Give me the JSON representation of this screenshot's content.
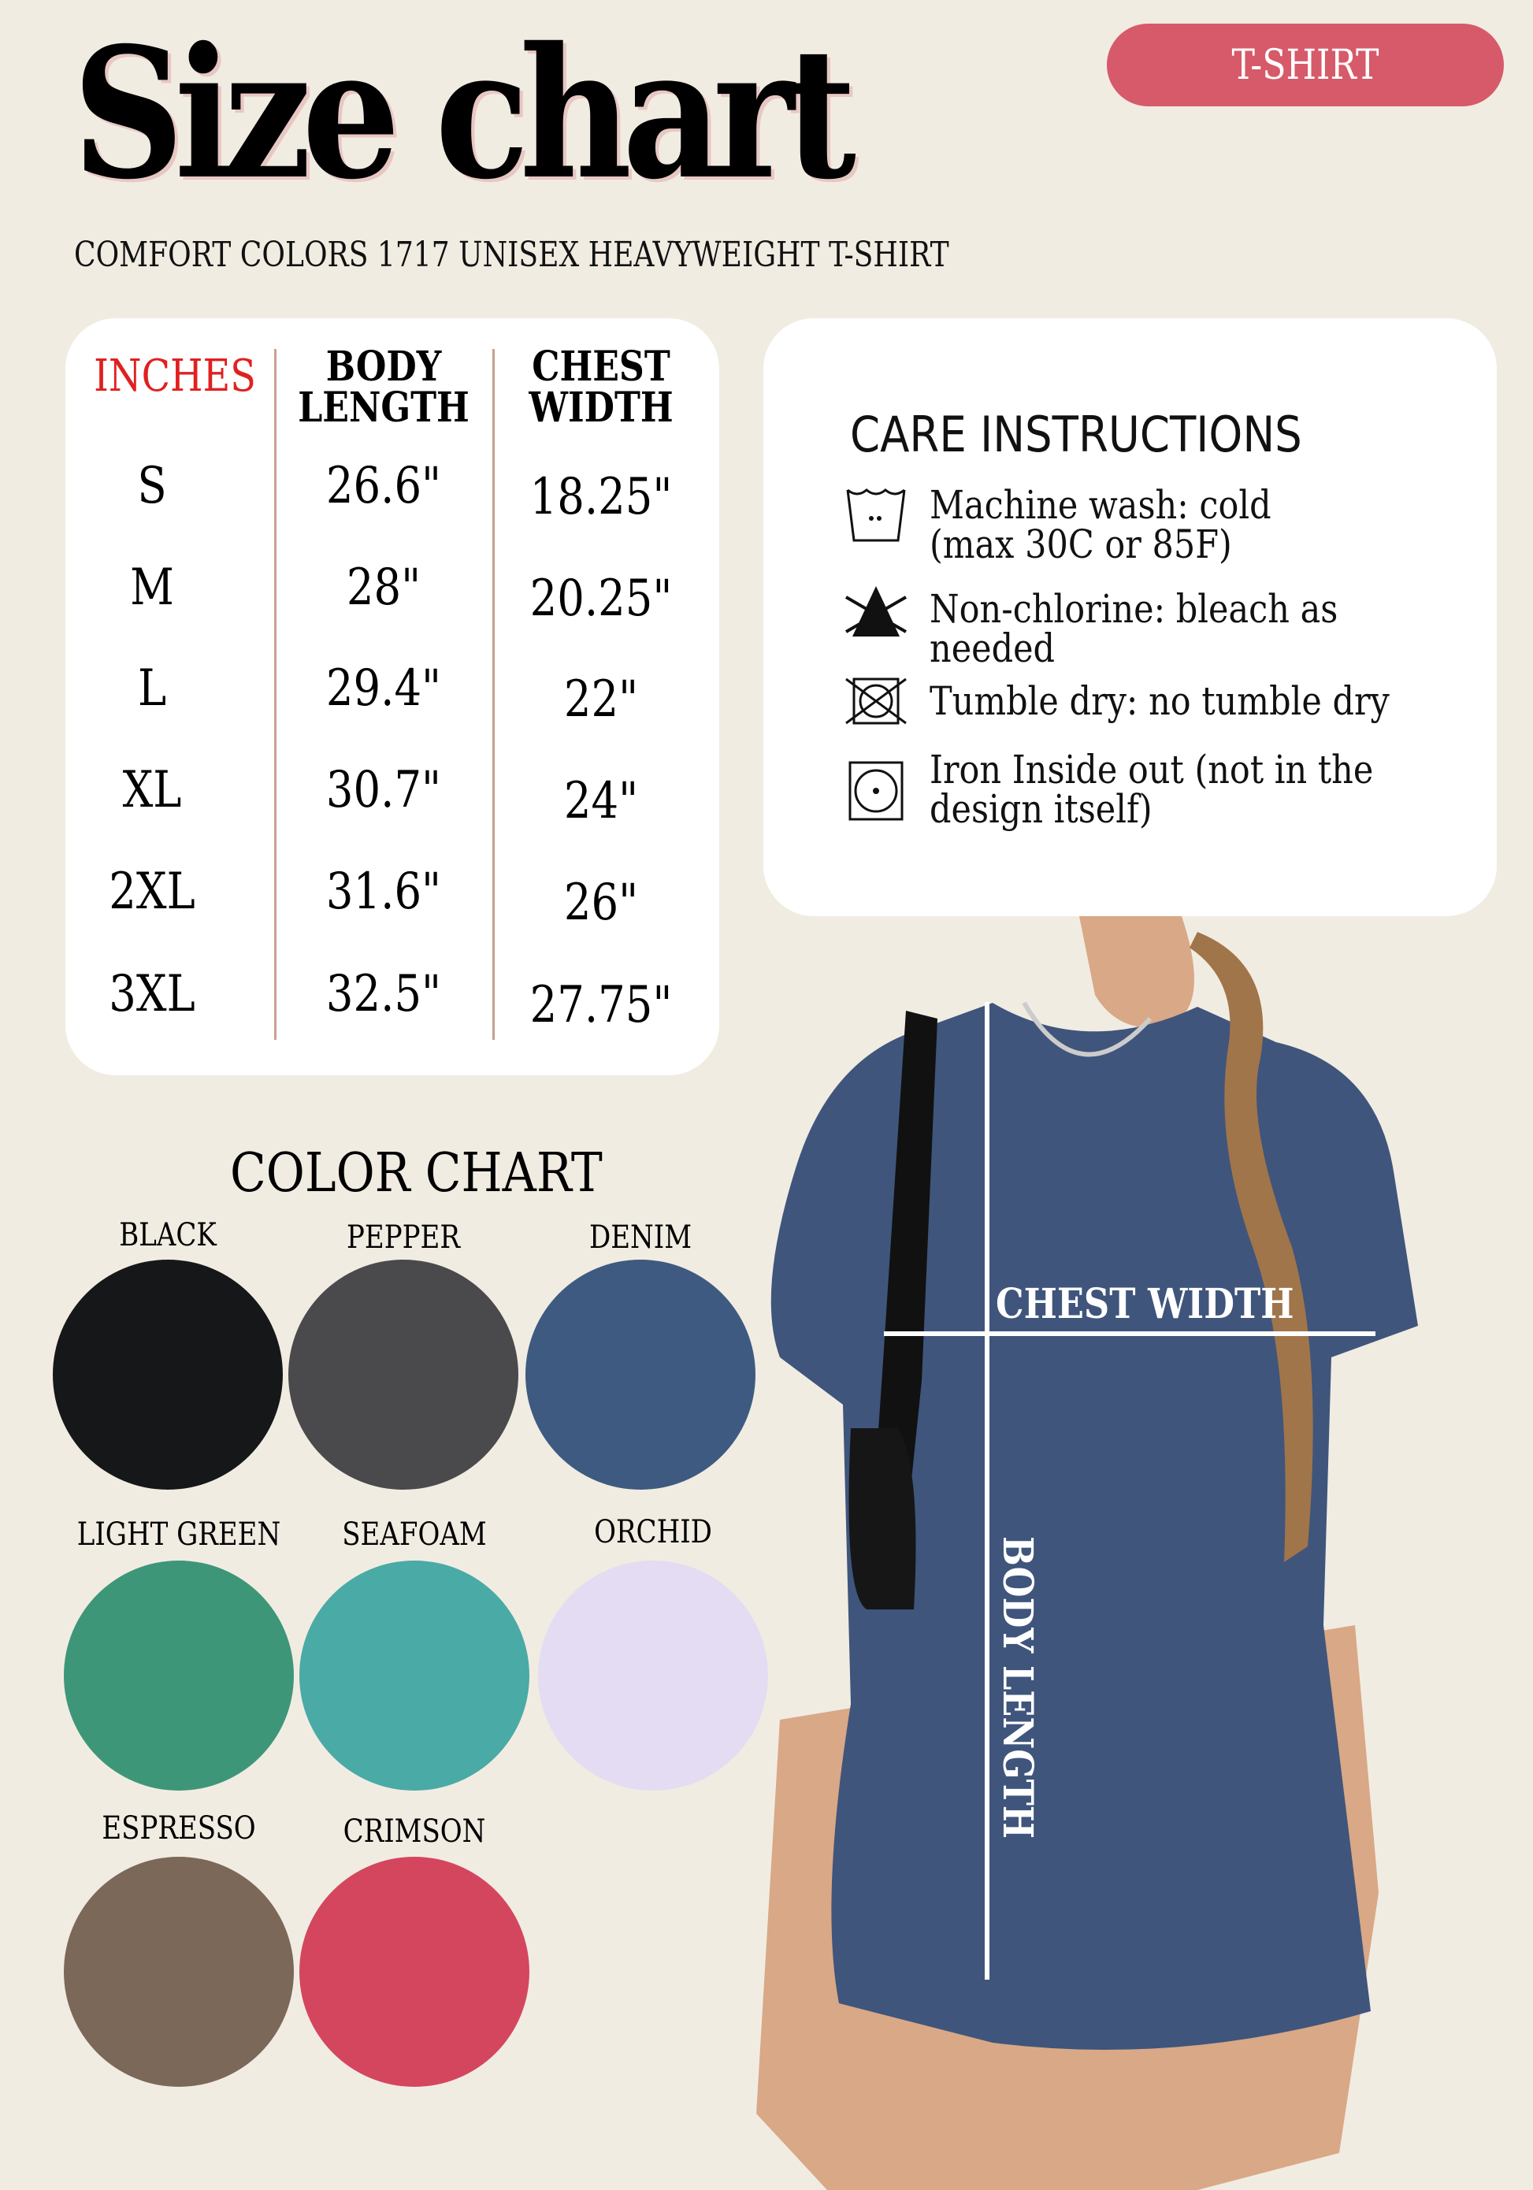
{
  "header": {
    "title": "Size chart",
    "badge": "T-SHIRT",
    "subtitle": "COMFORT COLORS 1717 UNISEX HEAVYWEIGHT T-SHIRT"
  },
  "size_table": {
    "unit_label": "INCHES",
    "columns": [
      "BODY\nLENGTH",
      "CHEST\nWIDTH"
    ],
    "column_lines": [
      [
        "BODY",
        "LENGTH"
      ],
      [
        "CHEST",
        "WIDTH"
      ]
    ],
    "rows": [
      {
        "size": "S",
        "body_length": "26.6\"",
        "chest_width": "18.25\""
      },
      {
        "size": "M",
        "body_length": "28\"",
        "chest_width": "20.25\""
      },
      {
        "size": "L",
        "body_length": "29.4\"",
        "chest_width": "22\""
      },
      {
        "size": "XL",
        "body_length": "30.7\"",
        "chest_width": "24\""
      },
      {
        "size": "2XL",
        "body_length": "31.6\"",
        "chest_width": "26\""
      },
      {
        "size": "3XL",
        "body_length": "32.5\"",
        "chest_width": "27.75\""
      }
    ],
    "unit_color": "#e02020"
  },
  "care": {
    "title": "CARE INSTRUCTIONS",
    "items": [
      {
        "icon": "machine-wash-cold-icon",
        "text": "Machine wash: cold\n(max 30C or 85F)"
      },
      {
        "icon": "non-chlorine-bleach-icon",
        "text": "Non-chlorine: bleach as\nneeded"
      },
      {
        "icon": "do-not-tumble-dry-icon",
        "text": "Tumble dry: no tumble dry"
      },
      {
        "icon": "iron-icon",
        "text": "Iron Inside out (not in the\ndesign itself)"
      }
    ]
  },
  "color_chart": {
    "title": "COLOR CHART",
    "colors": [
      {
        "name": "BLACK",
        "hex": "#151718"
      },
      {
        "name": "PEPPER",
        "hex": "#4a4a4c"
      },
      {
        "name": "DENIM",
        "hex": "#3f5a80"
      },
      {
        "name": "LIGHT GREEN",
        "hex": "#3e9679"
      },
      {
        "name": "SEAFOAM",
        "hex": "#4aaaa6"
      },
      {
        "name": "ORCHID",
        "hex": "#e4dcf2"
      },
      {
        "name": "ESPRESSO",
        "hex": "#7c6858"
      },
      {
        "name": "CRIMSON",
        "hex": "#d4465e"
      }
    ]
  },
  "photo": {
    "chest_label": "CHEST WIDTH",
    "body_label": "BODY LENGTH",
    "shirt_color": "#3f557c"
  },
  "colors": {
    "background": "#f1ece2",
    "badge": "#d65a69"
  }
}
